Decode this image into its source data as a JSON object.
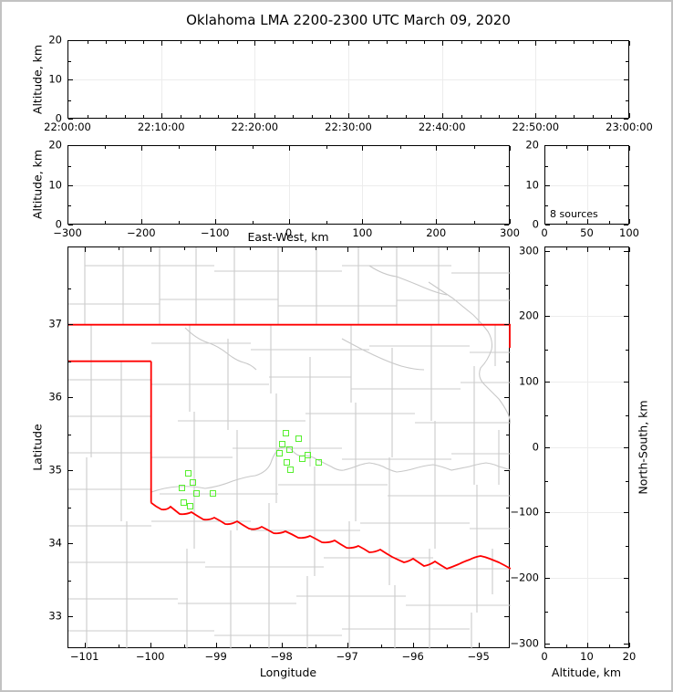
{
  "title": "Oklahoma LMA 2200-2300 UTC March 09, 2020",
  "colors": {
    "state_border": "#ff0000",
    "county_border": "#cbcbcb",
    "river": "#c8c8c8",
    "marker": "#57ef2f",
    "grid": "#ececec"
  },
  "panels": {
    "time_height": {
      "ylabel": "Altitude, km",
      "yticks": [
        "20",
        "10",
        "0"
      ],
      "xticks": [
        "22:00:00",
        "22:10:00",
        "22:20:00",
        "22:30:00",
        "22:40:00",
        "22:50:00",
        "23:00:00"
      ]
    },
    "ew_height": {
      "ylabel": "Altitude, km",
      "xlabel": "East-West, km",
      "yticks": [
        "20",
        "10",
        "0"
      ],
      "xticks": [
        "−300",
        "−200",
        "−100",
        "0",
        "100",
        "200",
        "300"
      ]
    },
    "histogram": {
      "annotation": "8 sources",
      "yticks": [
        "20",
        "10",
        "0"
      ],
      "xticks": [
        "0",
        "50",
        "100"
      ]
    },
    "map": {
      "ylabel": "Latitude",
      "xlabel": "Longitude",
      "yticks": [
        "37",
        "36",
        "35",
        "34",
        "33"
      ],
      "xticks": [
        "−101",
        "−100",
        "−99",
        "−98",
        "−97",
        "−96",
        "−95"
      ]
    },
    "ns_height": {
      "ylabel": "North-South, km",
      "xlabel": "Altitude, km",
      "yticks": [
        "300",
        "200",
        "100",
        "0",
        "−100",
        "−200",
        "−300"
      ],
      "xticks": [
        "0",
        "10",
        "20"
      ]
    }
  },
  "chart_data": [
    {
      "type": "scatter",
      "panel": "altitude-vs-time",
      "title": "Oklahoma LMA 2200-2300 UTC March 09, 2020",
      "ylabel": "Altitude, km",
      "ylim": [
        0,
        20
      ],
      "xlim": [
        "22:00:00",
        "23:00:00"
      ],
      "xticks": [
        "22:00:00",
        "22:10:00",
        "22:20:00",
        "22:30:00",
        "22:40:00",
        "22:50:00",
        "23:00:00"
      ],
      "grid": true,
      "points": []
    },
    {
      "type": "scatter",
      "panel": "altitude-vs-east-west",
      "xlabel": "East-West, km",
      "ylabel": "Altitude, km",
      "xlim": [
        -300,
        300
      ],
      "ylim": [
        0,
        20
      ],
      "grid": true,
      "points": []
    },
    {
      "type": "line",
      "panel": "source-count-profile",
      "annotation": "8 sources",
      "xlim": [
        0,
        100
      ],
      "ylim": [
        0,
        20
      ],
      "grid": true,
      "points": []
    },
    {
      "type": "scatter",
      "panel": "plan-view-map",
      "xlabel": "Longitude",
      "ylabel": "Latitude",
      "xlim": [
        -101.26,
        -94.52
      ],
      "ylim": [
        32.56,
        38.06
      ],
      "marker": "open-square",
      "marker_color": "#57ef2f",
      "map_features": [
        "Oklahoma state border (red)",
        "county boundaries (gray)",
        "rivers (gray)"
      ],
      "points": [
        [
          -97.954,
          35.509
        ],
        [
          -97.746,
          35.446
        ],
        [
          -97.996,
          35.371
        ],
        [
          -97.885,
          35.296
        ],
        [
          -98.038,
          35.234
        ],
        [
          -97.607,
          35.221
        ],
        [
          -97.704,
          35.159
        ],
        [
          -97.94,
          35.121
        ],
        [
          -97.454,
          35.121
        ],
        [
          -97.871,
          35.009
        ],
        [
          -99.44,
          34.971
        ],
        [
          -99.357,
          34.834
        ],
        [
          -99.537,
          34.771
        ],
        [
          -99.315,
          34.684
        ],
        [
          -99.065,
          34.696
        ],
        [
          -99.496,
          34.571
        ],
        [
          -99.412,
          34.509
        ]
      ]
    },
    {
      "type": "scatter",
      "panel": "north-south-vs-altitude",
      "xlabel": "Altitude, km",
      "ylabel": "North-South, km",
      "xlim": [
        0,
        20
      ],
      "ylim": [
        -300,
        300
      ],
      "grid": true,
      "points": []
    }
  ]
}
